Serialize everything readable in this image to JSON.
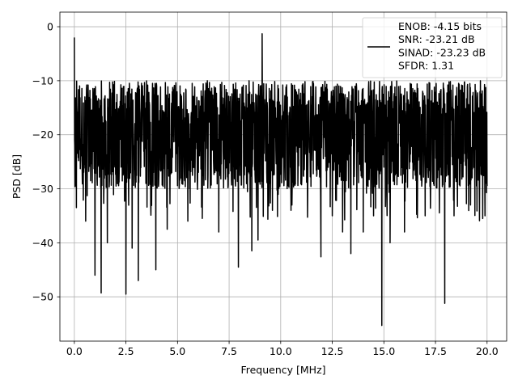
{
  "chart_data": {
    "type": "line",
    "title": "",
    "xlabel": "Frequency [MHz]",
    "ylabel": "PSD [dB]",
    "xlim": [
      -0.7,
      20.95
    ],
    "ylim": [
      -58.2,
      2.7
    ],
    "x_ticks": [
      0.0,
      2.5,
      5.0,
      7.5,
      10.0,
      12.5,
      15.0,
      17.5,
      20.0
    ],
    "x_tick_labels": [
      "0.0",
      "2.5",
      "5.0",
      "7.5",
      "10.0",
      "12.5",
      "15.0",
      "17.5",
      "20.0"
    ],
    "y_ticks": [
      0,
      -10,
      -20,
      -30,
      -40,
      -50
    ],
    "y_tick_labels": [
      "0",
      "−10",
      "−20",
      "−30",
      "−40",
      "−50"
    ],
    "grid": true,
    "legend": {
      "placement": "top-right",
      "entries": [
        "ENOB: -4.15 bits",
        "SNR: -23.21 dB",
        "SINAD: -23.23 dB",
        "SFDR: 1.31"
      ]
    },
    "series": [
      {
        "color": "#000000",
        "noise_band": {
          "x_start": 0.0,
          "x_end": 20.0,
          "typical_floor_db": -27,
          "typical_peak_db": -10
        },
        "notable_points": [
          {
            "x": 0.0,
            "y": -2
          },
          {
            "x": 0.02,
            "y": -22
          },
          {
            "x": 0.1,
            "y": -33.5
          },
          {
            "x": 0.55,
            "y": -36
          },
          {
            "x": 1.0,
            "y": -46
          },
          {
            "x": 1.3,
            "y": -49.3
          },
          {
            "x": 1.6,
            "y": -40
          },
          {
            "x": 2.5,
            "y": -49.5
          },
          {
            "x": 2.8,
            "y": -41
          },
          {
            "x": 3.1,
            "y": -47
          },
          {
            "x": 3.95,
            "y": -45
          },
          {
            "x": 4.5,
            "y": -37.5
          },
          {
            "x": 5.5,
            "y": -36
          },
          {
            "x": 6.2,
            "y": -35.5
          },
          {
            "x": 7.0,
            "y": -38
          },
          {
            "x": 7.95,
            "y": -44.5
          },
          {
            "x": 8.6,
            "y": -41.5
          },
          {
            "x": 8.9,
            "y": -39.5
          },
          {
            "x": 9.1,
            "y": -1.3
          },
          {
            "x": 9.6,
            "y": -34
          },
          {
            "x": 10.5,
            "y": -34
          },
          {
            "x": 11.95,
            "y": -42.6
          },
          {
            "x": 12.5,
            "y": -35
          },
          {
            "x": 13.0,
            "y": -38
          },
          {
            "x": 13.4,
            "y": -42
          },
          {
            "x": 14.0,
            "y": -38
          },
          {
            "x": 14.5,
            "y": -35
          },
          {
            "x": 14.9,
            "y": -55.3
          },
          {
            "x": 15.3,
            "y": -40
          },
          {
            "x": 16.0,
            "y": -38
          },
          {
            "x": 17.0,
            "y": -35
          },
          {
            "x": 17.95,
            "y": -51.2
          },
          {
            "x": 18.4,
            "y": -35
          },
          {
            "x": 19.2,
            "y": -33
          },
          {
            "x": 19.9,
            "y": -35
          }
        ]
      }
    ]
  }
}
